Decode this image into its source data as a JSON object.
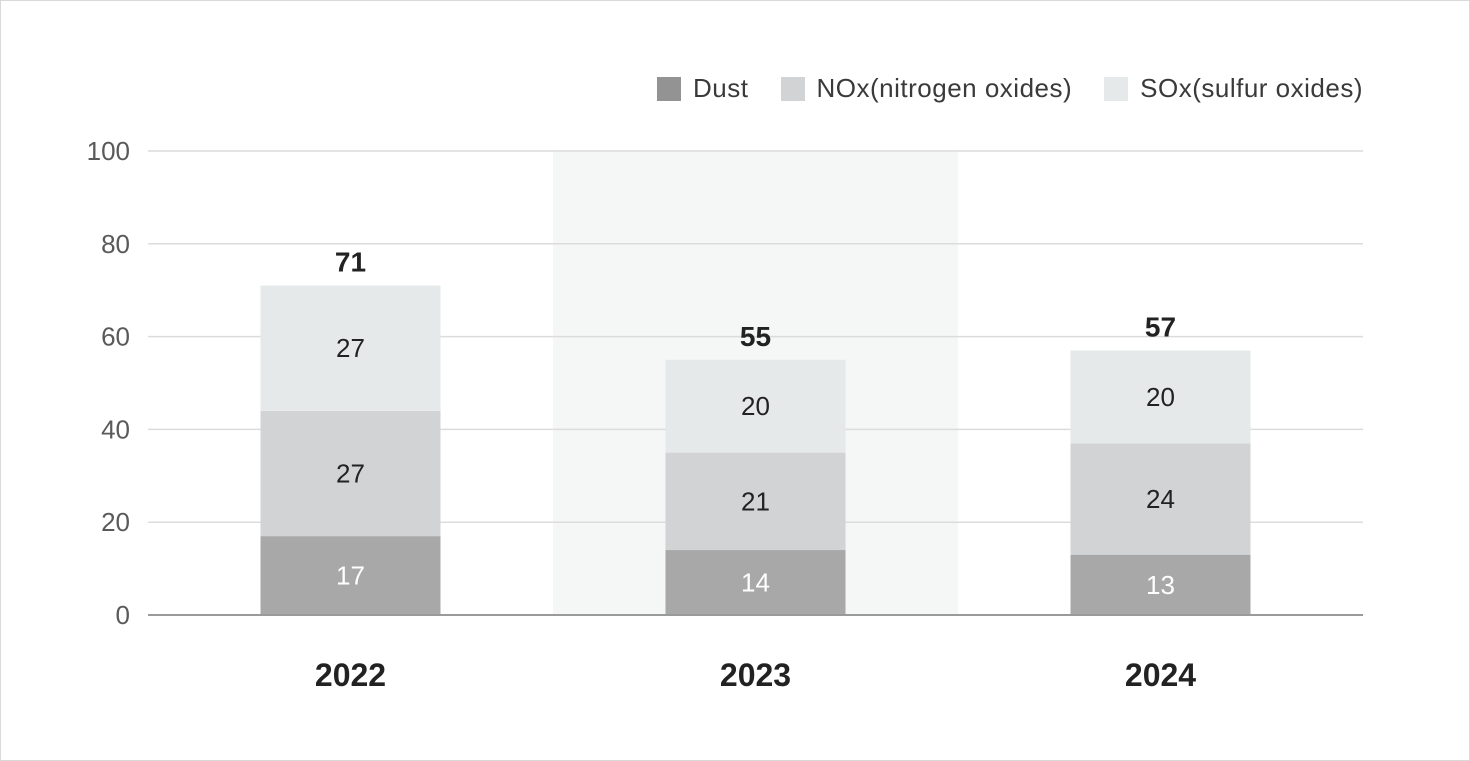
{
  "chart_data": {
    "type": "bar",
    "stacked": true,
    "categories": [
      "2022",
      "2023",
      "2024"
    ],
    "series": [
      {
        "name": "Dust",
        "values": [
          17,
          14,
          13
        ],
        "color": "#a8a8a8",
        "legend_color": "#939393",
        "label_color": "#ffffff"
      },
      {
        "name": "NOx(nitrogen oxides)",
        "values": [
          27,
          21,
          24
        ],
        "color": "#d2d3d4",
        "legend_color": "#d2d3d4",
        "label_color": "#222222"
      },
      {
        "name": "SOx(sulfur oxides)",
        "values": [
          27,
          20,
          20
        ],
        "color": "#e6e9ea",
        "legend_color": "#e6e9ea",
        "label_color": "#222222"
      }
    ],
    "totals": [
      71,
      55,
      57
    ],
    "ylim": [
      0,
      100
    ],
    "yticks": [
      0,
      20,
      40,
      60,
      80,
      100
    ],
    "xlabel": "",
    "ylabel": "",
    "title": "",
    "grid": true,
    "legend_position": "top-right",
    "highlighted_category": "2023",
    "highlight_color": "#f5f6f6",
    "gridline_color": "#dcdcdc",
    "axis_color": "#9a9a9a"
  }
}
